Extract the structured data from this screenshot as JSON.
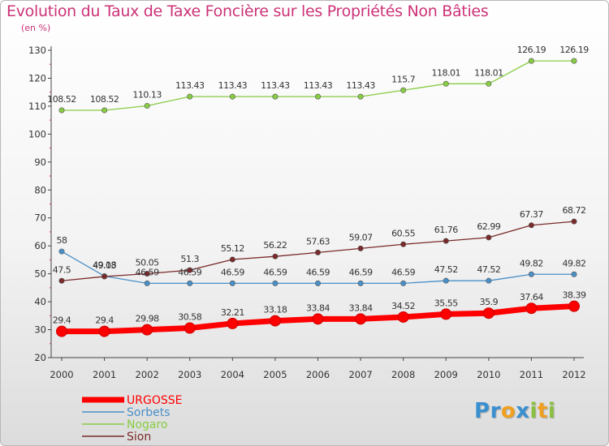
{
  "chart_data": {
    "type": "line",
    "title": "Evolution du Taux de Taxe Foncière sur les Propriétés Non Bâties",
    "unit_label": "(en %)",
    "x": [
      "2000",
      "2001",
      "2002",
      "2003",
      "2004",
      "2005",
      "2006",
      "2007",
      "2008",
      "2009",
      "2010",
      "2011",
      "2012"
    ],
    "ylim": [
      20,
      130
    ],
    "yticks": [
      20,
      30,
      40,
      50,
      60,
      70,
      80,
      90,
      100,
      110,
      120,
      130
    ],
    "grid": false,
    "legend_position": "bottom-left",
    "series": [
      {
        "name": "URGOSSE",
        "color": "#ff0000",
        "values": [
          29.4,
          29.4,
          29.98,
          30.58,
          32.21,
          33.18,
          33.84,
          33.84,
          34.52,
          35.55,
          35.9,
          37.64,
          38.39
        ],
        "labels": [
          "29.4",
          "29.4",
          "29.98",
          "30.58",
          "32.21",
          "33.18",
          "33.84",
          "33.84",
          "34.52",
          "35.55",
          "35.9",
          "37.64",
          "38.39"
        ]
      },
      {
        "name": "Sorbets",
        "color": "#4a90c8",
        "values": [
          58,
          49.18,
          46.59,
          46.59,
          46.59,
          46.59,
          46.59,
          46.59,
          46.59,
          47.52,
          47.52,
          49.82,
          49.82
        ],
        "labels": [
          "58",
          "49.18",
          "46.59",
          "46.59",
          "46.59",
          "46.59",
          "46.59",
          "46.59",
          "46.59",
          "47.52",
          "47.52",
          "49.82",
          "49.82"
        ]
      },
      {
        "name": "Nogaro",
        "color": "#88cc44",
        "values": [
          108.52,
          108.52,
          110.13,
          113.43,
          113.43,
          113.43,
          113.43,
          113.43,
          115.7,
          118.01,
          118.01,
          126.19,
          126.19
        ],
        "labels": [
          "108.52",
          "108.52",
          "110.13",
          "113.43",
          "113.43",
          "113.43",
          "113.43",
          "113.43",
          "115.7",
          "118.01",
          "118.01",
          "126.19",
          "126.19"
        ]
      },
      {
        "name": "Sion",
        "color": "#7a2a2a",
        "values": [
          47.5,
          49.03,
          50.05,
          51.3,
          55.12,
          56.22,
          57.63,
          59.07,
          60.55,
          61.76,
          62.99,
          67.37,
          68.72
        ],
        "labels": [
          "47.5",
          "49.03",
          "50.05",
          "51.3",
          "55.12",
          "56.22",
          "57.63",
          "59.07",
          "60.55",
          "61.76",
          "62.99",
          "67.37",
          "68.72"
        ]
      }
    ]
  },
  "logo": {
    "letters": [
      "P",
      "r",
      "o",
      "x",
      "i",
      "t",
      "i"
    ],
    "colors": [
      "#3a8fd0",
      "#3a8fd0",
      "#f0a020",
      "#3a8fd0",
      "#88c040",
      "#f0a020",
      "#88c040"
    ]
  }
}
